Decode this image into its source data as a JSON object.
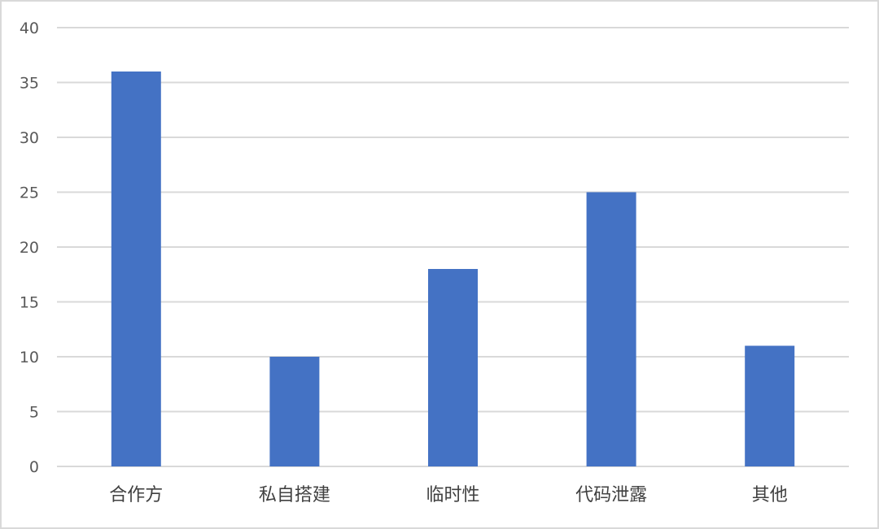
{
  "chart_data": {
    "type": "bar",
    "title": "",
    "xlabel": "",
    "ylabel": "",
    "categories": [
      "合作方",
      "私自搭建",
      "临时性",
      "代码泄露",
      "其他"
    ],
    "values": [
      36,
      10,
      18,
      25,
      11
    ],
    "ylim": [
      0,
      40
    ],
    "yticks": [
      0,
      5,
      10,
      15,
      20,
      25,
      30,
      35,
      40
    ],
    "grid": true,
    "legend": "none",
    "colors": {
      "bar": "#4472c4",
      "grid": "#d9d9d9",
      "border": "#d9d9d9"
    }
  }
}
